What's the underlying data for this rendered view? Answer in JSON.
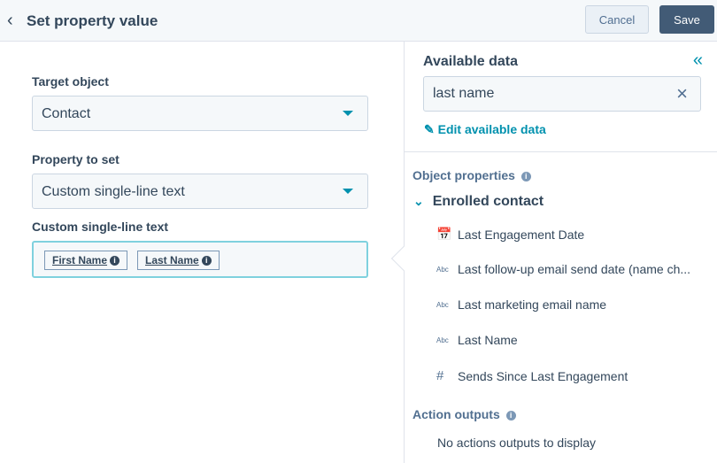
{
  "header": {
    "title": "Set property value",
    "cancel": "Cancel",
    "save": "Save"
  },
  "form": {
    "target_label": "Target object",
    "target_value": "Contact",
    "property_label": "Property to set",
    "property_value": "Custom single-line text",
    "value_label": "Custom single-line text",
    "tokens": [
      "First Name",
      "Last Name"
    ]
  },
  "panel": {
    "title": "Available data",
    "search_value": "last name",
    "edit_link": "Edit available data",
    "object_properties": "Object properties",
    "group": "Enrolled contact",
    "items": [
      {
        "icon": "calendar-icon",
        "label": "Last Engagement Date"
      },
      {
        "icon": "text-icon",
        "label": "Last follow-up email send date (name ch..."
      },
      {
        "icon": "text-icon",
        "label": "Last marketing email name"
      },
      {
        "icon": "text-icon",
        "label": "Last Name"
      },
      {
        "icon": "number-icon",
        "label": "Sends Since Last Engagement"
      }
    ],
    "abc": "Abc",
    "action_outputs": "Action outputs",
    "empty": "No actions outputs to display"
  },
  "colors": {
    "accent": "#0091ae",
    "save_bg": "#425b76",
    "text": "#33475b"
  }
}
